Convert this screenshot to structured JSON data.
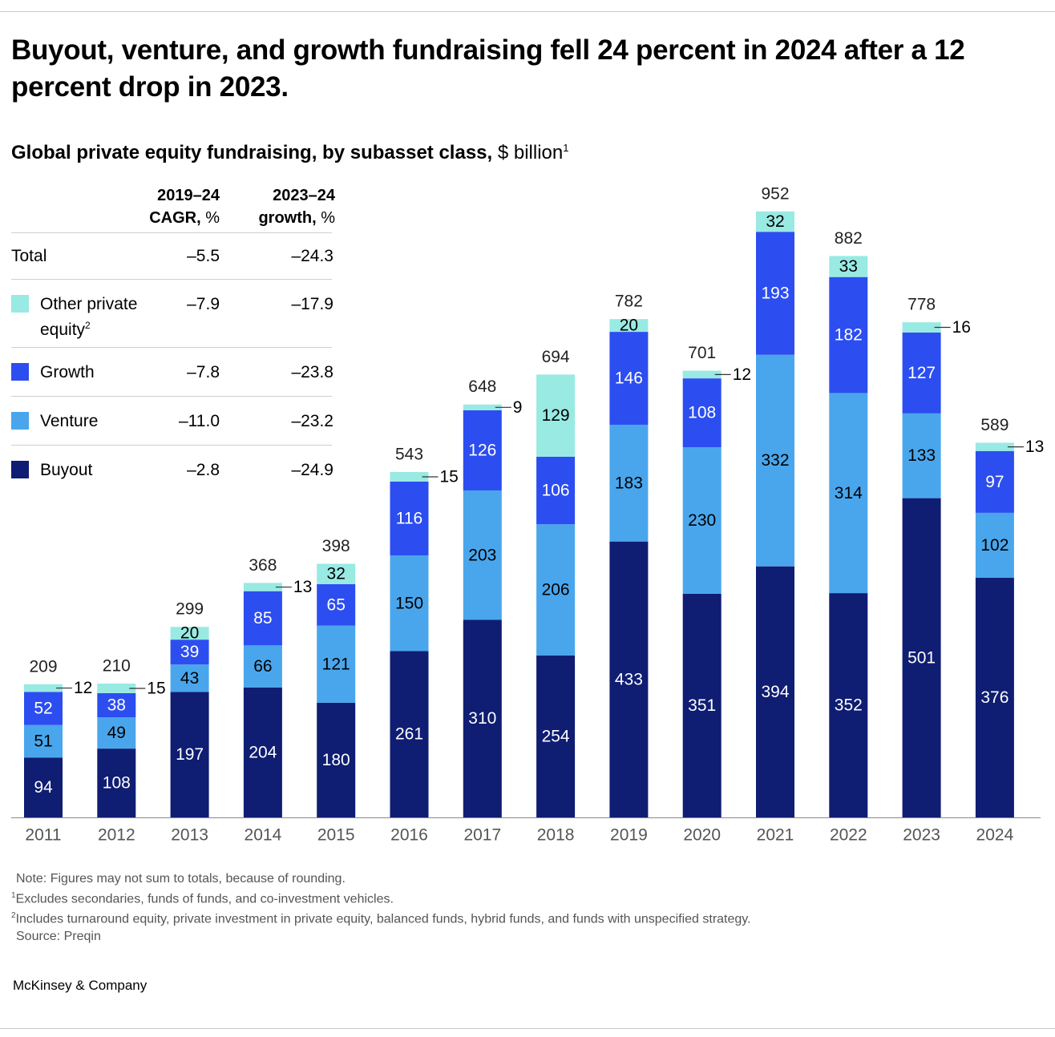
{
  "header": {
    "title": "Buyout, venture, and growth fundraising fell 24 percent in 2024 after a 12 percent drop in 2023.",
    "subtitle_bold": "Global private equity fundraising, by subasset class,",
    "subtitle_unit": " $ billion",
    "subtitle_sup": "1"
  },
  "legend_table": {
    "col1_line1": "2019–24",
    "col1_line2_bold": "CAGR,",
    "col1_line2_normal": " %",
    "col2_line1": "2023–24",
    "col2_line2_bold": "growth,",
    "col2_line2_normal": " %",
    "rows": [
      {
        "label": "Total",
        "cagr": "–5.5",
        "growth": "–24.3"
      },
      {
        "label": "Other private",
        "label2": "equity",
        "sup": "2",
        "cagr": "–7.9",
        "growth": "–17.9",
        "color": "#98eae3"
      },
      {
        "label": "Growth",
        "cagr": "–7.8",
        "growth": "–23.8",
        "color": "#2c4ef0"
      },
      {
        "label": "Venture",
        "cagr": "–11.0",
        "growth": "–23.2",
        "color": "#49a6ec"
      },
      {
        "label": "Buyout",
        "cagr": "–2.8",
        "growth": "–24.9",
        "color": "#0f1d72"
      }
    ]
  },
  "chart_data": {
    "type": "bar",
    "stacked": true,
    "categories": [
      "2011",
      "2012",
      "2013",
      "2014",
      "2015",
      "2016",
      "2017",
      "2018",
      "2019",
      "2020",
      "2021",
      "2022",
      "2023",
      "2024"
    ],
    "series": [
      {
        "name": "Buyout",
        "color": "#0f1d72",
        "text_color": "#ffffff",
        "values": [
          94,
          108,
          197,
          204,
          180,
          261,
          310,
          254,
          433,
          351,
          394,
          352,
          501,
          376
        ]
      },
      {
        "name": "Venture",
        "color": "#49a6ec",
        "text_color": "#000000",
        "values": [
          51,
          49,
          43,
          66,
          121,
          150,
          203,
          206,
          183,
          230,
          332,
          314,
          133,
          102
        ]
      },
      {
        "name": "Growth",
        "color": "#2c4ef0",
        "text_color": "#ffffff",
        "values": [
          52,
          38,
          39,
          85,
          65,
          116,
          126,
          106,
          146,
          108,
          193,
          182,
          127,
          97
        ]
      },
      {
        "name": "Other private equity",
        "color": "#98eae3",
        "text_color": "#000000",
        "values": [
          12,
          15,
          20,
          13,
          32,
          15,
          9,
          129,
          20,
          12,
          32,
          33,
          16,
          13
        ]
      }
    ],
    "totals": [
      209,
      210,
      299,
      368,
      398,
      543,
      648,
      694,
      782,
      701,
      952,
      882,
      778,
      589
    ],
    "outside_other_label": [
      true,
      true,
      false,
      true,
      false,
      true,
      true,
      false,
      false,
      true,
      false,
      false,
      true,
      true
    ],
    "ylim": [
      0,
      952
    ],
    "grid": false
  },
  "notes": {
    "note": "Note: Figures may not sum to totals, because of rounding.",
    "fn1_sup": "1",
    "fn1": "Excludes secondaries, funds of funds, and co-investment vehicles.",
    "fn2_sup": "2",
    "fn2": "Includes turnaround equity, private investment in private equity, balanced funds, hybrid funds, and funds with unspecified strategy.",
    "source": "Source: Preqin"
  },
  "brand": "McKinsey & Company"
}
